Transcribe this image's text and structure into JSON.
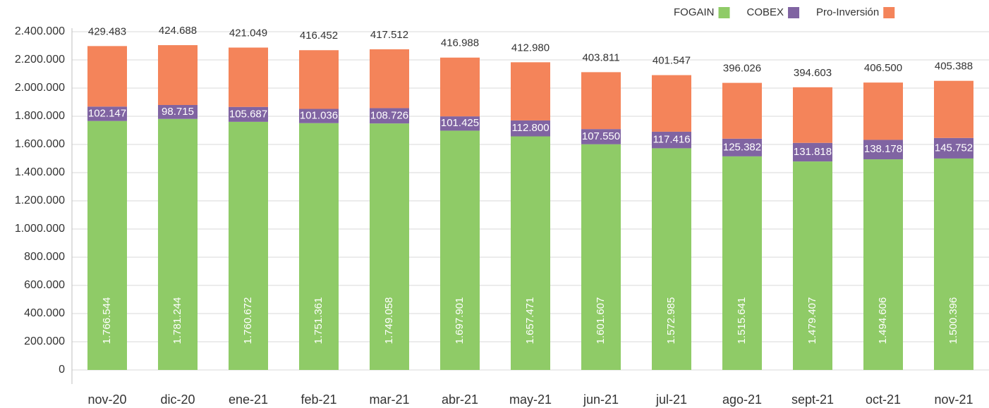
{
  "chart_data": {
    "type": "stacked_bar",
    "categories": [
      "nov-20",
      "dic-20",
      "ene-21",
      "feb-21",
      "mar-21",
      "abr-21",
      "may-21",
      "jun-21",
      "jul-21",
      "ago-21",
      "sept-21",
      "oct-21",
      "nov-21"
    ],
    "series": [
      {
        "name": "FOGAIN",
        "color": "#8fcb67",
        "values": [
          1766544,
          1781244,
          1760672,
          1751361,
          1749058,
          1697901,
          1657471,
          1601607,
          1572985,
          1515641,
          1479407,
          1494606,
          1500396
        ],
        "value_labels": [
          "1.766.544",
          "1.781.244",
          "1.760.672",
          "1.751.361",
          "1.749.058",
          "1.697.901",
          "1.657.471",
          "1.601.607",
          "1.572.985",
          "1.515.641",
          "1.479.407",
          "1.494.606",
          "1.500.396"
        ]
      },
      {
        "name": "COBEX",
        "color": "#8064a2",
        "values": [
          102147,
          98715,
          105687,
          101036,
          108726,
          101425,
          112800,
          107550,
          117416,
          125382,
          131818,
          138178,
          145752
        ],
        "value_labels": [
          "102.147",
          "98.715",
          "105.687",
          "101.036",
          "108.726",
          "101.425",
          "112.800",
          "107.550",
          "117.416",
          "125.382",
          "131.818",
          "138.178",
          "145.752"
        ]
      },
      {
        "name": "Pro-Inversión",
        "color": "#f4845a",
        "values": [
          429483,
          424688,
          421049,
          416452,
          417512,
          416988,
          412980,
          403811,
          401547,
          396026,
          394603,
          406500,
          405388
        ],
        "value_labels": [
          "429.483",
          "424.688",
          "421.049",
          "416.452",
          "417.512",
          "416.988",
          "412.980",
          "403.811",
          "401.547",
          "396.026",
          "394.603",
          "406.500",
          "405.388"
        ]
      }
    ],
    "ylim": [
      0,
      2400000
    ],
    "yticks": [
      0,
      {
        "value": 200000,
        "label": "200.000"
      },
      {
        "value": 400000,
        "label": "400.000"
      },
      {
        "value": 600000,
        "label": "600.000"
      },
      {
        "value": 800000,
        "label": "800.000"
      },
      {
        "value": 1000000,
        "label": "1.000.000"
      },
      {
        "value": 1200000,
        "label": "1.200.000"
      },
      {
        "value": 1400000,
        "label": "1.400.000"
      },
      {
        "value": 1600000,
        "label": "1.600.000"
      },
      {
        "value": 1800000,
        "label": "1.800.000"
      },
      {
        "value": 2000000,
        "label": "2.000.000"
      },
      {
        "value": 2200000,
        "label": "2.200.000"
      },
      {
        "value": 2400000,
        "label": "2.400.000"
      }
    ],
    "grid": true,
    "legend": "top-right"
  }
}
